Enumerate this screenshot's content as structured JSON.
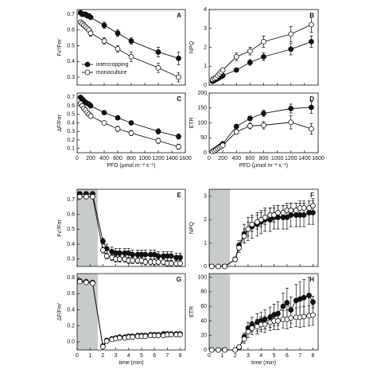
{
  "chart_data": [
    {
      "type": "line",
      "panel": "A",
      "y_label": "Fv'/Fm'",
      "x": [
        50,
        75,
        100,
        125,
        150,
        175,
        200,
        400,
        600,
        800,
        1200,
        1500
      ],
      "xlim": [
        0,
        1600
      ],
      "xticks": [
        0,
        200,
        400,
        600,
        800,
        1000,
        1200,
        1400,
        1600
      ],
      "show_xtick_labels": false,
      "ylim": [
        0.25,
        0.73
      ],
      "yticks": [
        0.3,
        0.4,
        0.5,
        0.6,
        0.7
      ],
      "legend": "lower-left",
      "series": [
        {
          "name": "intercropping",
          "color": "#111111",
          "fill": "#111111",
          "values": [
            0.71,
            0.7,
            0.7,
            0.7,
            0.69,
            0.69,
            0.68,
            0.63,
            0.58,
            0.53,
            0.46,
            0.42
          ],
          "errors": [
            0.01,
            0.01,
            0.01,
            0.01,
            0.01,
            0.01,
            0.01,
            0.02,
            0.02,
            0.02,
            0.03,
            0.04
          ]
        },
        {
          "name": "monoculture",
          "color": "#111111",
          "fill": "#ffffff",
          "values": [
            0.65,
            0.64,
            0.63,
            0.62,
            0.61,
            0.6,
            0.58,
            0.53,
            0.48,
            0.43,
            0.36,
            0.3
          ],
          "errors": [
            0.01,
            0.01,
            0.01,
            0.01,
            0.01,
            0.01,
            0.02,
            0.02,
            0.02,
            0.03,
            0.03,
            0.03
          ]
        }
      ]
    },
    {
      "type": "line",
      "panel": "B",
      "y_label": "NPQ",
      "x": [
        50,
        75,
        100,
        125,
        150,
        175,
        200,
        400,
        600,
        800,
        1200,
        1500
      ],
      "xlim": [
        0,
        1600
      ],
      "xticks": [
        0,
        200,
        400,
        600,
        800,
        1000,
        1200,
        1400,
        1600
      ],
      "show_xtick_labels": false,
      "ylim": [
        0,
        4
      ],
      "yticks": [
        0,
        1,
        2,
        3,
        4
      ],
      "series": [
        {
          "color": "#111111",
          "fill": "#111111",
          "values": [
            0.2,
            0.25,
            0.3,
            0.35,
            0.4,
            0.45,
            0.5,
            0.8,
            1.2,
            1.5,
            1.9,
            2.3
          ],
          "errors": [
            0.05,
            0.05,
            0.05,
            0.05,
            0.05,
            0.05,
            0.1,
            0.1,
            0.15,
            0.2,
            0.3,
            0.3
          ]
        },
        {
          "color": "#111111",
          "fill": "#ffffff",
          "values": [
            0.3,
            0.35,
            0.4,
            0.5,
            0.6,
            0.7,
            0.8,
            1.5,
            1.8,
            2.3,
            2.7,
            3.2
          ],
          "errors": [
            0.05,
            0.05,
            0.05,
            0.05,
            0.1,
            0.1,
            0.1,
            0.2,
            0.2,
            0.3,
            0.4,
            0.4
          ]
        }
      ]
    },
    {
      "type": "line",
      "panel": "C",
      "y_label": "ΔF/Fm'",
      "x_label": "PFD (µmol m⁻² s⁻¹)",
      "x": [
        50,
        75,
        100,
        125,
        150,
        175,
        200,
        400,
        600,
        800,
        1200,
        1500
      ],
      "xlim": [
        0,
        1600
      ],
      "xticks": [
        0,
        200,
        400,
        600,
        800,
        1000,
        1200,
        1400,
        1600
      ],
      "show_xtick_labels": true,
      "ylim": [
        0.05,
        0.75
      ],
      "yticks": [
        0.1,
        0.2,
        0.3,
        0.4,
        0.5,
        0.6,
        0.7
      ],
      "series": [
        {
          "color": "#111111",
          "fill": "#111111",
          "values": [
            0.7,
            0.68,
            0.66,
            0.64,
            0.63,
            0.62,
            0.6,
            0.52,
            0.46,
            0.4,
            0.3,
            0.24
          ],
          "errors": [
            0.01,
            0.01,
            0.01,
            0.01,
            0.01,
            0.01,
            0.02,
            0.02,
            0.02,
            0.02,
            0.03,
            0.03
          ]
        },
        {
          "color": "#111111",
          "fill": "#ffffff",
          "values": [
            0.63,
            0.6,
            0.57,
            0.55,
            0.52,
            0.5,
            0.48,
            0.4,
            0.33,
            0.28,
            0.19,
            0.12
          ],
          "errors": [
            0.01,
            0.01,
            0.01,
            0.01,
            0.01,
            0.02,
            0.02,
            0.02,
            0.03,
            0.03,
            0.03,
            0.03
          ]
        }
      ]
    },
    {
      "type": "line",
      "panel": "D",
      "y_label": "ETR",
      "x_label": "PFD (µmol m⁻² s⁻¹)",
      "x": [
        50,
        75,
        100,
        125,
        150,
        175,
        200,
        400,
        600,
        800,
        1200,
        1500
      ],
      "xlim": [
        0,
        1600
      ],
      "xticks": [
        0,
        200,
        400,
        600,
        800,
        1000,
        1200,
        1400,
        1600
      ],
      "show_xtick_labels": true,
      "ylim": [
        0,
        200
      ],
      "yticks": [
        0,
        50,
        100,
        150,
        200
      ],
      "series": [
        {
          "color": "#111111",
          "fill": "#111111",
          "values": [
            5,
            8,
            12,
            16,
            20,
            24,
            30,
            88,
            115,
            132,
            148,
            152
          ],
          "errors": [
            1,
            1,
            1,
            2,
            2,
            2,
            3,
            6,
            8,
            10,
            15,
            20
          ]
        },
        {
          "color": "#111111",
          "fill": "#ffffff",
          "values": [
            4,
            7,
            10,
            14,
            18,
            21,
            25,
            70,
            90,
            92,
            102,
            80
          ],
          "errors": [
            1,
            1,
            1,
            2,
            2,
            2,
            3,
            8,
            10,
            12,
            22,
            18
          ]
        }
      ]
    },
    {
      "type": "line",
      "panel": "E",
      "y_label": "Fv'/Fm'",
      "x": [
        0.2,
        0.7,
        1.2,
        2,
        2.3,
        2.7,
        3,
        3.3,
        3.7,
        4,
        4.3,
        4.7,
        5,
        5.3,
        5.7,
        6,
        6.3,
        6.7,
        7,
        7.3,
        7.7,
        8
      ],
      "xlim": [
        0,
        8.4
      ],
      "xticks": [
        0,
        1,
        2,
        3,
        4,
        5,
        6,
        7,
        8
      ],
      "show_xtick_labels": false,
      "ylim": [
        0.25,
        0.77
      ],
      "yticks": [
        0.3,
        0.4,
        0.5,
        0.6,
        0.7
      ],
      "shade": [
        0,
        1.6
      ],
      "series": [
        {
          "color": "#111111",
          "fill": "#111111",
          "values": [
            0.74,
            0.74,
            0.74,
            0.42,
            0.37,
            0.35,
            0.34,
            0.34,
            0.34,
            0.34,
            0.33,
            0.33,
            0.33,
            0.33,
            0.33,
            0.33,
            0.32,
            0.32,
            0.32,
            0.32,
            0.31,
            0.31
          ],
          "errors": [
            0.01,
            0.01,
            0.01,
            0.02,
            0.03,
            0.03,
            0.03,
            0.03,
            0.03,
            0.03,
            0.03,
            0.03,
            0.03,
            0.03,
            0.03,
            0.03,
            0.03,
            0.03,
            0.03,
            0.03,
            0.03,
            0.03
          ]
        },
        {
          "color": "#111111",
          "fill": "#ffffff",
          "values": [
            0.72,
            0.72,
            0.72,
            0.36,
            0.32,
            0.31,
            0.3,
            0.3,
            0.3,
            0.29,
            0.29,
            0.29,
            0.29,
            0.28,
            0.28,
            0.28,
            0.28,
            0.28,
            0.27,
            0.27,
            0.27,
            0.27
          ],
          "errors": [
            0.01,
            0.01,
            0.01,
            0.02,
            0.02,
            0.02,
            0.02,
            0.02,
            0.02,
            0.02,
            0.02,
            0.02,
            0.02,
            0.02,
            0.02,
            0.02,
            0.02,
            0.02,
            0.02,
            0.02,
            0.02,
            0.02
          ]
        }
      ]
    },
    {
      "type": "line",
      "panel": "F",
      "y_label": "NPQ",
      "x": [
        0.2,
        0.7,
        1.2,
        2,
        2.3,
        2.7,
        3,
        3.3,
        3.7,
        4,
        4.3,
        4.7,
        5,
        5.3,
        5.7,
        6,
        6.3,
        6.7,
        7,
        7.3,
        7.7,
        8
      ],
      "xlim": [
        0,
        8.4
      ],
      "xticks": [
        0,
        1,
        2,
        3,
        4,
        5,
        6,
        7,
        8
      ],
      "show_xtick_labels": false,
      "ylim": [
        0,
        3.3
      ],
      "yticks": [
        0,
        1,
        2,
        3
      ],
      "shade": [
        0,
        1.6
      ],
      "series": [
        {
          "color": "#111111",
          "fill": "#111111",
          "values": [
            0,
            0,
            0,
            0.3,
            0.9,
            1.4,
            1.6,
            1.7,
            1.8,
            1.9,
            2.0,
            2.0,
            2.1,
            2.1,
            2.1,
            2.1,
            2.2,
            2.2,
            2.2,
            2.2,
            2.3,
            2.3
          ],
          "errors": [
            0,
            0,
            0,
            0.1,
            0.2,
            0.4,
            0.5,
            0.5,
            0.5,
            0.5,
            0.5,
            0.5,
            0.5,
            0.5,
            0.5,
            0.5,
            0.5,
            0.5,
            0.5,
            0.5,
            0.5,
            0.5
          ]
        },
        {
          "color": "#111111",
          "fill": "#ffffff",
          "values": [
            0,
            0,
            0,
            0.3,
            0.8,
            1.3,
            1.6,
            1.8,
            1.9,
            2.0,
            2.1,
            2.2,
            2.2,
            2.3,
            2.3,
            2.4,
            2.4,
            2.4,
            2.5,
            2.5,
            2.5,
            2.6
          ],
          "errors": [
            0,
            0,
            0,
            0.1,
            0.2,
            0.3,
            0.3,
            0.3,
            0.3,
            0.3,
            0.3,
            0.3,
            0.3,
            0.3,
            0.3,
            0.3,
            0.3,
            0.3,
            0.3,
            0.3,
            0.3,
            0.3
          ]
        }
      ]
    },
    {
      "type": "line",
      "panel": "G",
      "y_label": "ΔF/Fm'",
      "x_label": "time (min)",
      "x": [
        0.2,
        0.7,
        1.2,
        2,
        2.3,
        2.7,
        3,
        3.3,
        3.7,
        4,
        4.3,
        4.7,
        5,
        5.3,
        5.7,
        6,
        6.3,
        6.7,
        7,
        7.3,
        7.7,
        8
      ],
      "xlim": [
        0,
        8.4
      ],
      "xticks": [
        0,
        1,
        2,
        3,
        4,
        5,
        6,
        7,
        8
      ],
      "show_xtick_labels": true,
      "ylim": [
        -0.1,
        0.85
      ],
      "yticks": [
        {
          "value": 0,
          "label": "0.0"
        },
        0.2,
        0.4,
        0.6,
        0.8
      ],
      "shade": [
        0,
        1.6
      ],
      "series": [
        {
          "color": "#111111",
          "fill": "#111111",
          "values": [
            0.76,
            0.75,
            0.74,
            -0.05,
            0.02,
            0.04,
            0.05,
            0.06,
            0.06,
            0.07,
            0.07,
            0.08,
            0.08,
            0.08,
            0.09,
            0.09,
            0.09,
            0.1,
            0.1,
            0.1,
            0.1,
            0.1
          ],
          "errors": [
            0.01,
            0.01,
            0.01,
            0.01,
            0.01,
            0.01,
            0.01,
            0.01,
            0.01,
            0.01,
            0.01,
            0.01,
            0.01,
            0.01,
            0.01,
            0.01,
            0.01,
            0.01,
            0.01,
            0.01,
            0.01,
            0.01
          ]
        },
        {
          "color": "#111111",
          "fill": "#ffffff",
          "values": [
            0.75,
            0.74,
            0.73,
            -0.06,
            0.01,
            0.03,
            0.04,
            0.05,
            0.05,
            0.06,
            0.06,
            0.07,
            0.07,
            0.07,
            0.08,
            0.08,
            0.08,
            0.08,
            0.09,
            0.09,
            0.09,
            0.09
          ],
          "errors": [
            0.01,
            0.01,
            0.01,
            0.01,
            0.01,
            0.01,
            0.01,
            0.01,
            0.01,
            0.01,
            0.01,
            0.01,
            0.01,
            0.01,
            0.01,
            0.01,
            0.01,
            0.01,
            0.01,
            0.01,
            0.01,
            0.01
          ]
        }
      ]
    },
    {
      "type": "line",
      "panel": "H",
      "y_label": "ETR",
      "x_label": "time (min)",
      "x": [
        0.2,
        0.7,
        1.2,
        2,
        2.3,
        2.7,
        3,
        3.3,
        3.7,
        4,
        4.3,
        4.7,
        5,
        5.3,
        5.7,
        6,
        6.3,
        6.7,
        7,
        7.3,
        7.7,
        8
      ],
      "xlim": [
        0,
        8.4
      ],
      "xticks": [
        0,
        1,
        2,
        3,
        4,
        5,
        6,
        7,
        8
      ],
      "show_xtick_labels": true,
      "ylim": [
        0,
        105
      ],
      "yticks": [
        0,
        20,
        40,
        60,
        80,
        100
      ],
      "shade": [
        0,
        1.6
      ],
      "series": [
        {
          "color": "#111111",
          "fill": "#111111",
          "values": [
            0,
            0,
            0,
            0,
            3,
            18,
            30,
            35,
            38,
            40,
            42,
            45,
            48,
            50,
            60,
            65,
            55,
            68,
            70,
            72,
            75,
            66
          ],
          "errors": [
            0,
            0,
            0,
            0,
            2,
            5,
            8,
            10,
            12,
            12,
            13,
            14,
            15,
            16,
            18,
            20,
            18,
            22,
            24,
            25,
            25,
            8
          ]
        },
        {
          "color": "#111111",
          "fill": "#ffffff",
          "values": [
            0,
            0,
            0,
            0,
            4,
            15,
            25,
            30,
            32,
            35,
            35,
            38,
            40,
            40,
            42,
            42,
            44,
            45,
            45,
            46,
            47,
            48
          ],
          "errors": [
            0,
            0,
            0,
            0,
            2,
            6,
            8,
            9,
            10,
            10,
            11,
            11,
            12,
            12,
            12,
            13,
            13,
            13,
            14,
            14,
            14,
            14
          ]
        }
      ]
    }
  ]
}
